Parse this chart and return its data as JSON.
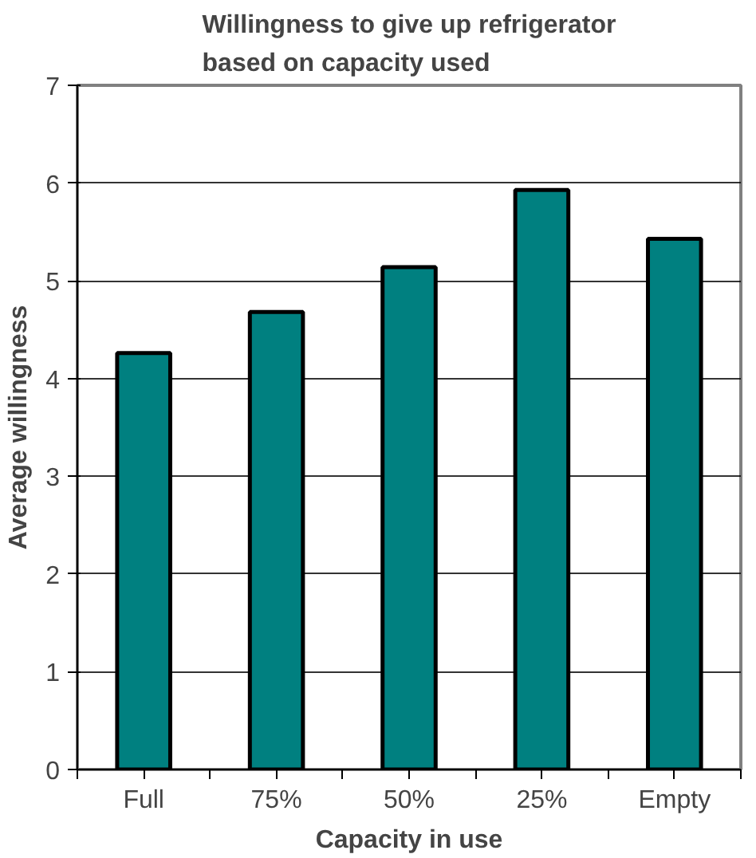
{
  "chart_data": {
    "type": "bar",
    "title": "Willingness to give up refrigerator\nbased on capacity used",
    "xlabel": "Capacity in use",
    "ylabel": "Average willingness",
    "categories": [
      "Full",
      "75%",
      "50%",
      "25%",
      "Empty"
    ],
    "values": [
      4.26,
      4.68,
      5.14,
      5.93,
      5.43
    ],
    "color": "#008080",
    "ylim": [
      0,
      7
    ],
    "yticks": [
      0,
      1,
      2,
      3,
      4,
      5,
      6,
      7
    ],
    "grid": "y"
  }
}
